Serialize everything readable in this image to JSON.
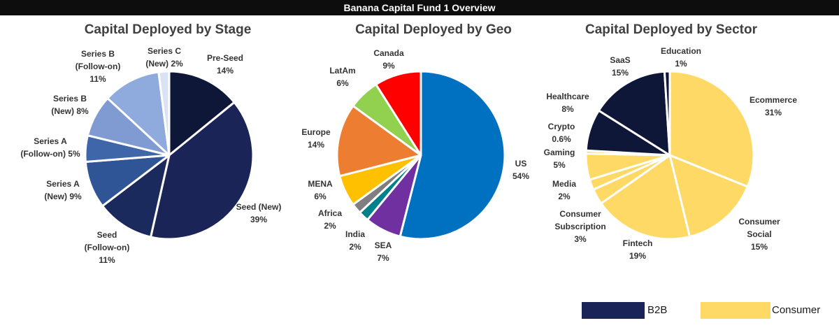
{
  "header": {
    "title": "Banana Capital Fund 1 Overview"
  },
  "chart_data": [
    {
      "type": "pie",
      "title": "Capital Deployed by Stage",
      "slices": [
        {
          "label": "Pre-Seed",
          "pct_text": "14%",
          "value": 14,
          "color": "#0f1738"
        },
        {
          "label": "Seed (New)",
          "pct_text": "39%",
          "value": 39,
          "color": "#1a2457"
        },
        {
          "label": "Seed\n(Follow-on)",
          "pct_text": "11%",
          "value": 11,
          "color": "#1b2a5c"
        },
        {
          "label": "Series A\n(New) 9%",
          "pct_text": "",
          "value": 9,
          "color": "#2f5597"
        },
        {
          "label": "Series A\n(Follow-on) 5%",
          "pct_text": "",
          "value": 5,
          "color": "#3e66a8"
        },
        {
          "label": "Series B\n(New) 8%",
          "pct_text": "",
          "value": 8,
          "color": "#7f9bd1"
        },
        {
          "label": "Series B\n(Follow-on)",
          "pct_text": "11%",
          "value": 11,
          "color": "#8faadc"
        },
        {
          "label": "Series C\n(New) 2%",
          "pct_text": "",
          "value": 2,
          "color": "#dae3f3"
        }
      ]
    },
    {
      "type": "pie",
      "title": "Capital Deployed by Geo",
      "slices": [
        {
          "label": "US",
          "pct_text": "54%",
          "value": 54,
          "color": "#0070c0"
        },
        {
          "label": "SEA",
          "pct_text": "7%",
          "value": 7,
          "color": "#7030a0"
        },
        {
          "label": "India",
          "pct_text": "2%",
          "value": 2,
          "color": "#00808a"
        },
        {
          "label": "Africa",
          "pct_text": "2%",
          "value": 2,
          "color": "#7f7f7f"
        },
        {
          "label": "MENA",
          "pct_text": "6%",
          "value": 6,
          "color": "#ffc000"
        },
        {
          "label": "Europe",
          "pct_text": "14%",
          "value": 14,
          "color": "#ed7d31"
        },
        {
          "label": "LatAm",
          "pct_text": "6%",
          "value": 6,
          "color": "#92d050"
        },
        {
          "label": "Canada",
          "pct_text": "9%",
          "value": 9,
          "color": "#ff0000"
        }
      ]
    },
    {
      "type": "pie",
      "title": "Capital Deployed by Sector",
      "slices": [
        {
          "label": "Ecommerce",
          "pct_text": "31%",
          "value": 31,
          "color": "#ffd966"
        },
        {
          "label": "Consumer\nSocial",
          "pct_text": "15%",
          "value": 15,
          "color": "#ffd966"
        },
        {
          "label": "Fintech",
          "pct_text": "19%",
          "value": 19,
          "color": "#ffd966"
        },
        {
          "label": "Consumer\nSubscription",
          "pct_text": "3%",
          "value": 3,
          "color": "#ffd966"
        },
        {
          "label": "Media",
          "pct_text": "2%",
          "value": 2,
          "color": "#ffd966"
        },
        {
          "label": "Gaming",
          "pct_text": "5%",
          "value": 5,
          "color": "#ffd966"
        },
        {
          "label": "Crypto",
          "pct_text": "0.6%",
          "value": 0.6,
          "color": "#ffd966"
        },
        {
          "label": "Healthcare",
          "pct_text": "8%",
          "value": 8,
          "color": "#0f1738"
        },
        {
          "label": "SaaS",
          "pct_text": "15%",
          "value": 15,
          "color": "#0f1738"
        },
        {
          "label": "Education",
          "pct_text": "1%",
          "value": 1,
          "color": "#0f1738"
        }
      ]
    }
  ],
  "legend": [
    {
      "label": "B2B",
      "color": "#1a2457"
    },
    {
      "label": "Consumer",
      "color": "#ffd966"
    }
  ]
}
